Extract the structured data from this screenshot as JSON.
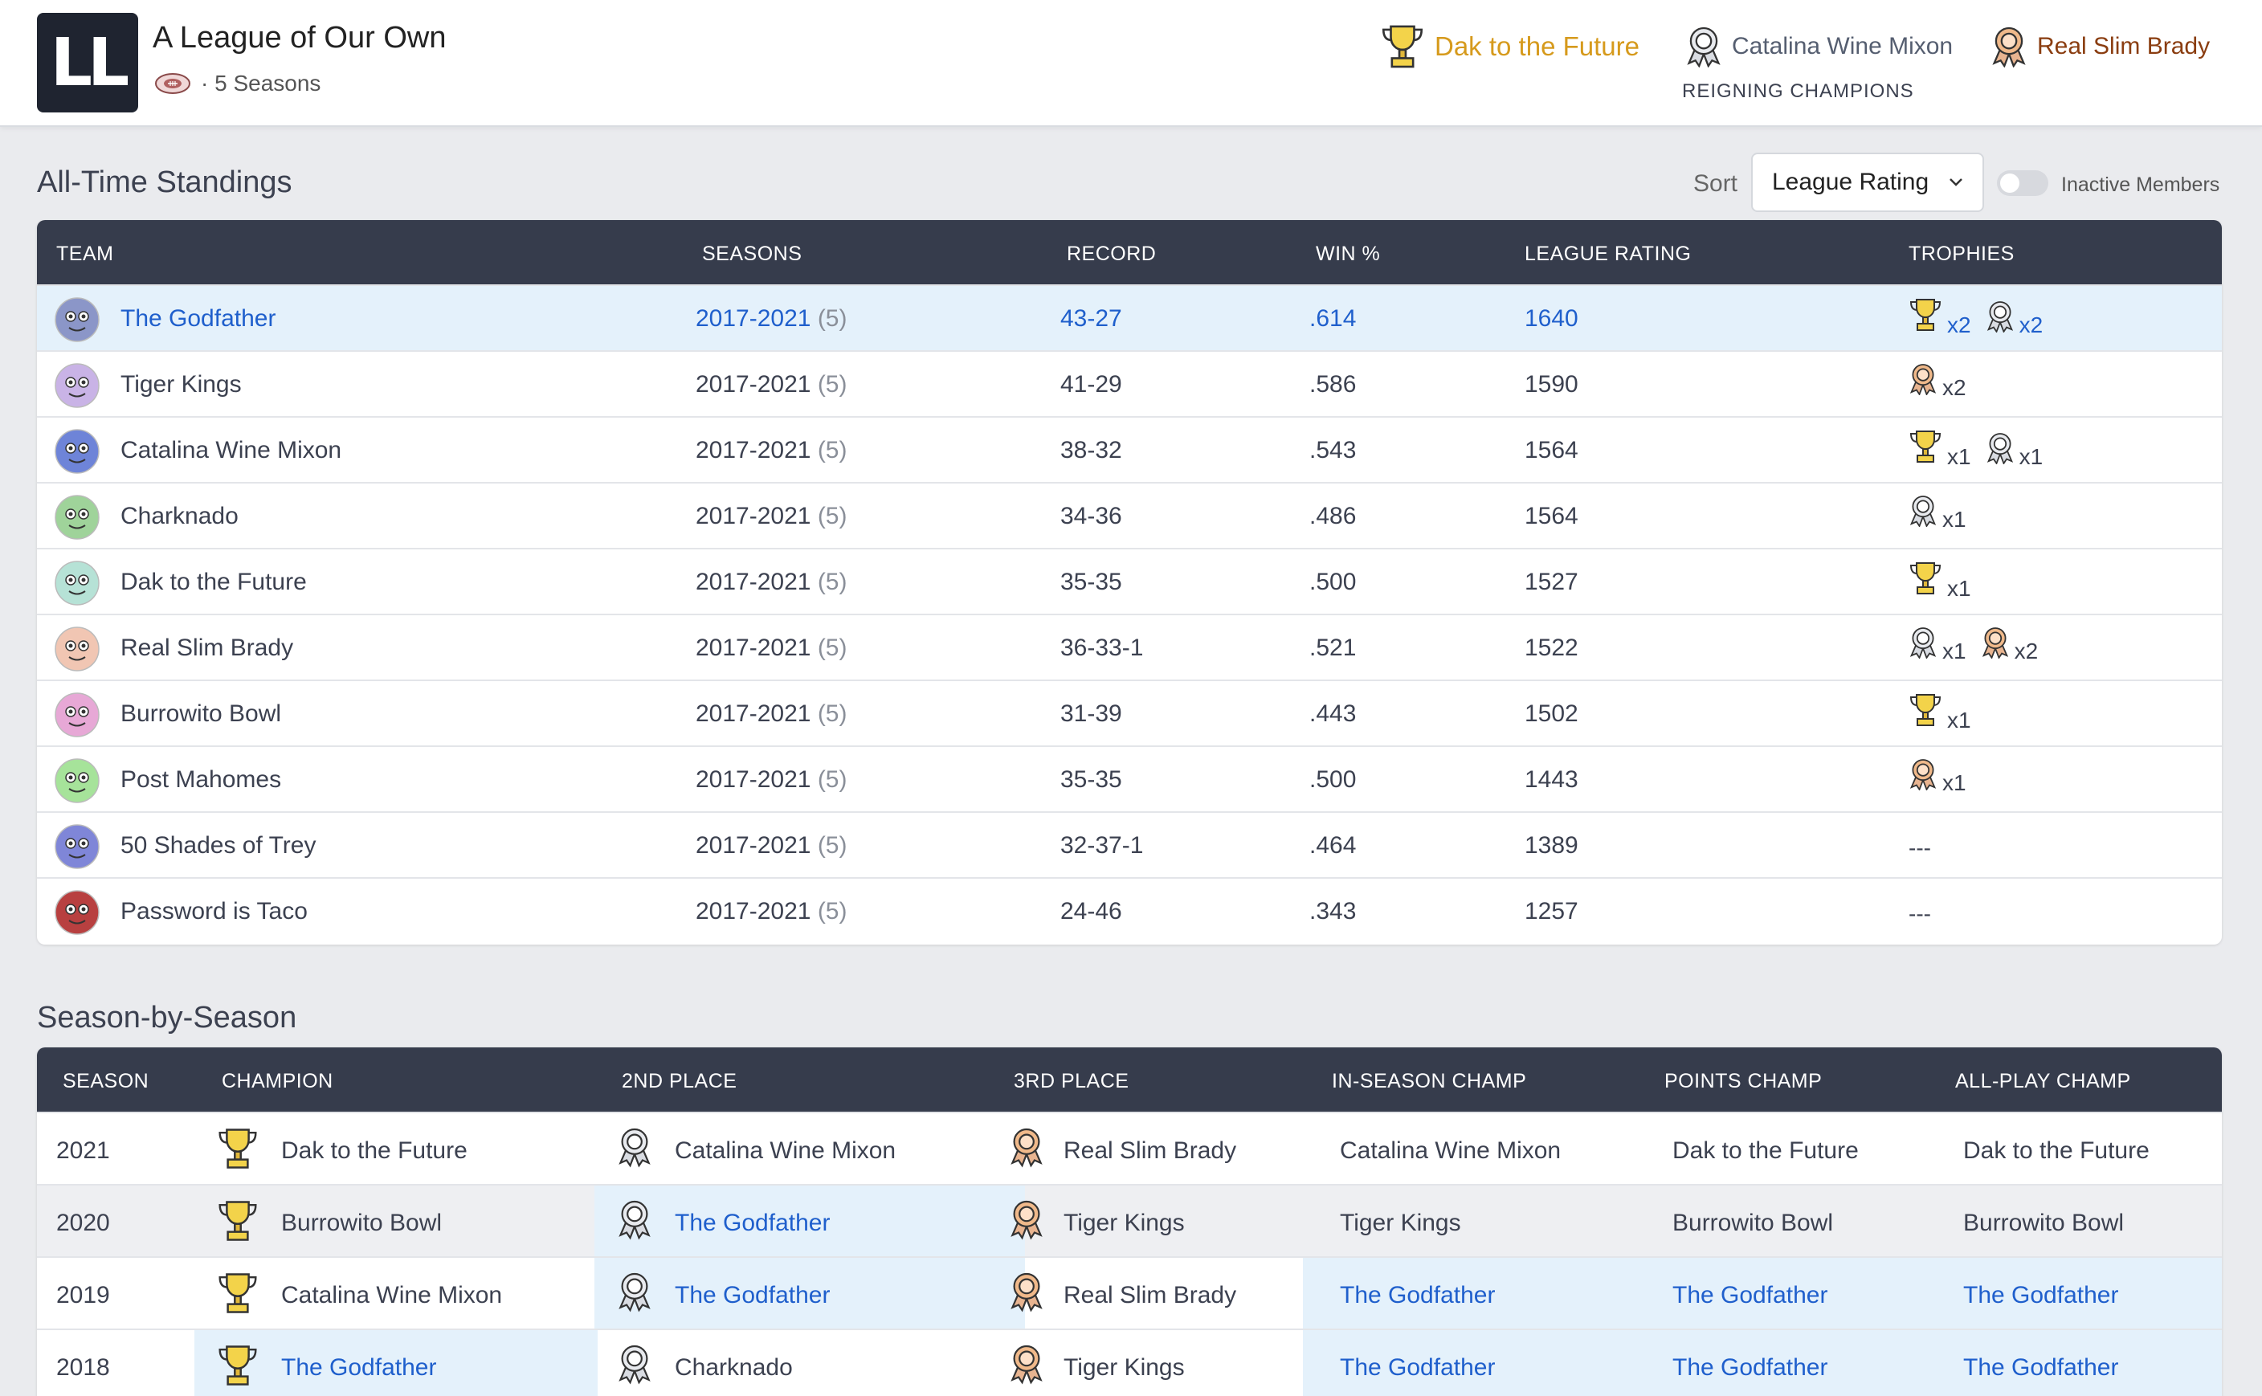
{
  "header": {
    "logo_text": "LL",
    "title": "A League of Our Own",
    "seasons_text": "· 5 Seasons",
    "reigning_label": "REIGNING CHAMPIONS",
    "champions": [
      {
        "name": "Dak to the Future",
        "place": "1st",
        "color": "#d69a1c"
      },
      {
        "name": "Catalina Wine Mixon",
        "place": "2nd",
        "color": "#555e70"
      },
      {
        "name": "Real Slim Brady",
        "place": "3rd",
        "color": "#8a3d10"
      }
    ]
  },
  "standings": {
    "title": "All-Time Standings",
    "sort_label": "Sort",
    "sort_value": "League Rating",
    "inactive_label": "Inactive Members",
    "columns": [
      "TEAM",
      "SEASONS",
      "RECORD",
      "WIN %",
      "LEAGUE RATING",
      "TROPHIES"
    ],
    "rows": [
      {
        "team": "The Godfather",
        "seasons": "2017-2021",
        "count": "(5)",
        "record": "43-27",
        "win": ".614",
        "rating": "1640",
        "trophies": [
          {
            "icon": "gold-trophy",
            "count": "x2"
          },
          {
            "icon": "silver-medal",
            "count": "x2"
          }
        ],
        "highlight": true,
        "avatar_color": "#8b96c8"
      },
      {
        "team": "Tiger Kings",
        "seasons": "2017-2021",
        "count": "(5)",
        "record": "41-29",
        "win": ".586",
        "rating": "1590",
        "trophies": [
          {
            "icon": "bronze-medal",
            "count": "x2"
          }
        ],
        "avatar_color": "#c9b3e6"
      },
      {
        "team": "Catalina Wine Mixon",
        "seasons": "2017-2021",
        "count": "(5)",
        "record": "38-32",
        "win": ".543",
        "rating": "1564",
        "trophies": [
          {
            "icon": "gold-trophy",
            "count": "x1"
          },
          {
            "icon": "silver-medal",
            "count": "x1"
          }
        ],
        "avatar_color": "#6e84d8"
      },
      {
        "team": "Charknado",
        "seasons": "2017-2021",
        "count": "(5)",
        "record": "34-36",
        "win": ".486",
        "rating": "1564",
        "trophies": [
          {
            "icon": "silver-medal",
            "count": "x1"
          }
        ],
        "avatar_color": "#9fd39a"
      },
      {
        "team": "Dak to the Future",
        "seasons": "2017-2021",
        "count": "(5)",
        "record": "35-35",
        "win": ".500",
        "rating": "1527",
        "trophies": [
          {
            "icon": "gold-trophy",
            "count": "x1"
          }
        ],
        "avatar_color": "#b6e2d6"
      },
      {
        "team": "Real Slim Brady",
        "seasons": "2017-2021",
        "count": "(5)",
        "record": "36-33-1",
        "win": ".521",
        "rating": "1522",
        "trophies": [
          {
            "icon": "silver-medal",
            "count": "x1"
          },
          {
            "icon": "bronze-medal",
            "count": "x2"
          }
        ],
        "avatar_color": "#f1c6b3"
      },
      {
        "team": "Burrowito Bowl",
        "seasons": "2017-2021",
        "count": "(5)",
        "record": "31-39",
        "win": ".443",
        "rating": "1502",
        "trophies": [
          {
            "icon": "gold-trophy",
            "count": "x1"
          }
        ],
        "avatar_color": "#e7a8d6"
      },
      {
        "team": "Post Mahomes",
        "seasons": "2017-2021",
        "count": "(5)",
        "record": "35-35",
        "win": ".500",
        "rating": "1443",
        "trophies": [
          {
            "icon": "bronze-medal",
            "count": "x1"
          }
        ],
        "avatar_color": "#a6e39a"
      },
      {
        "team": "50 Shades of Trey",
        "seasons": "2017-2021",
        "count": "(5)",
        "record": "32-37-1",
        "win": ".464",
        "rating": "1389",
        "trophies_text": "---",
        "avatar_color": "#7f86d8"
      },
      {
        "team": "Password is Taco",
        "seasons": "2017-2021",
        "count": "(5)",
        "record": "24-46",
        "win": ".343",
        "rating": "1257",
        "trophies_text": "---",
        "avatar_color": "#b84040"
      }
    ]
  },
  "season_table": {
    "title": "Season-by-Season",
    "columns": [
      "SEASON",
      "CHAMPION",
      "2ND PLACE",
      "3RD PLACE",
      "IN-SEASON CHAMP",
      "POINTS CHAMP",
      "ALL-PLAY CHAMP"
    ],
    "rows": [
      {
        "season": "2021",
        "champion": "Dak to the Future",
        "second": "Catalina Wine Mixon",
        "third": "Real Slim Brady",
        "in_season": "Catalina Wine Mixon",
        "points": "Dak to the Future",
        "all_play": "Dak to the Future",
        "hl": []
      },
      {
        "season": "2020",
        "champion": "Burrowito Bowl",
        "second": "The Godfather",
        "third": "Tiger Kings",
        "in_season": "Tiger Kings",
        "points": "Burrowito Bowl",
        "all_play": "Burrowito Bowl",
        "hl": [
          "second"
        ]
      },
      {
        "season": "2019",
        "champion": "Catalina Wine Mixon",
        "second": "The Godfather",
        "third": "Real Slim Brady",
        "in_season": "The Godfather",
        "points": "The Godfather",
        "all_play": "The Godfather",
        "hl": [
          "second",
          "in_season",
          "points",
          "all_play"
        ]
      },
      {
        "season": "2018",
        "champion": "The Godfather",
        "second": "Charknado",
        "third": "Tiger Kings",
        "in_season": "The Godfather",
        "points": "The Godfather",
        "all_play": "The Godfather",
        "hl": [
          "champion",
          "in_season",
          "points",
          "all_play"
        ]
      }
    ]
  }
}
